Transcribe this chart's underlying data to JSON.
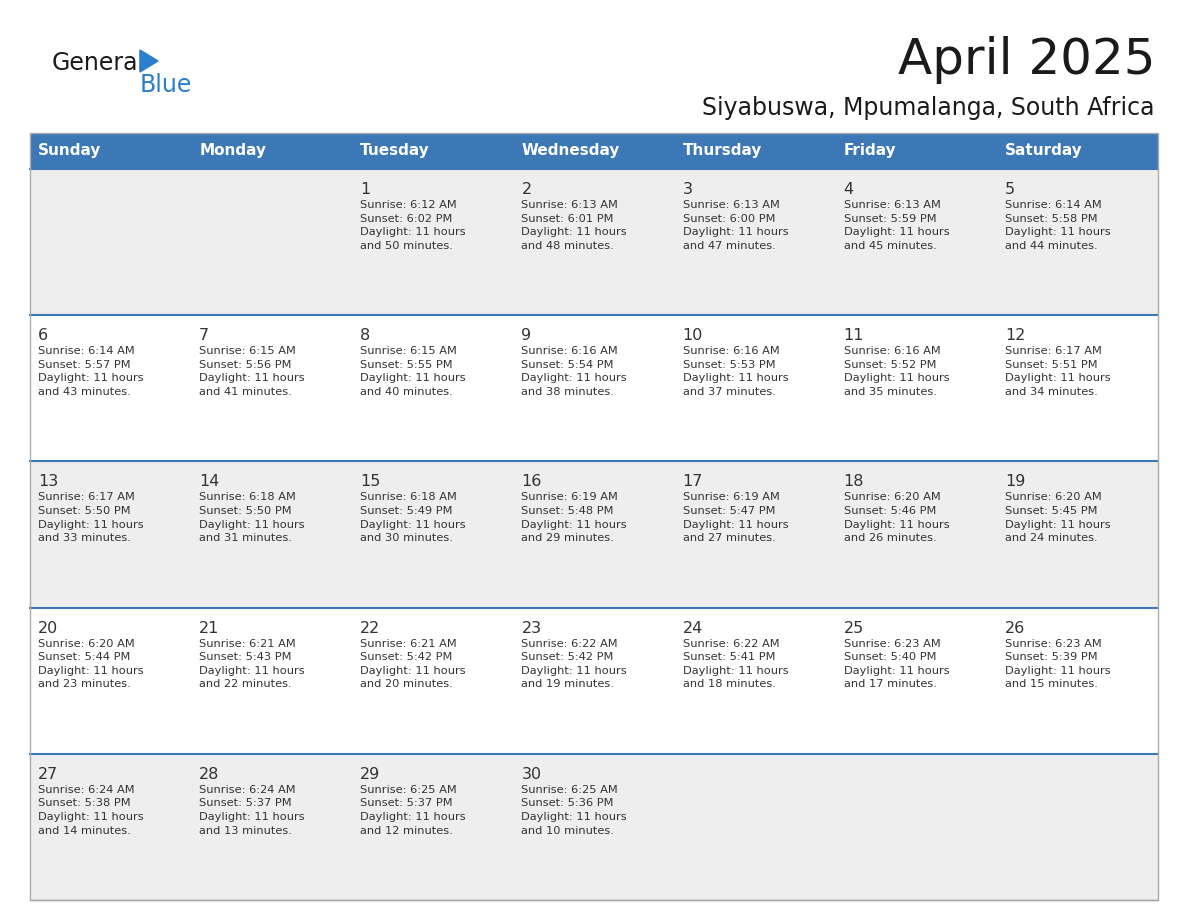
{
  "title": "April 2025",
  "subtitle": "Siyabuswa, Mpumalanga, South Africa",
  "days_of_week": [
    "Sunday",
    "Monday",
    "Tuesday",
    "Wednesday",
    "Thursday",
    "Friday",
    "Saturday"
  ],
  "header_bg": "#3C78B5",
  "header_text": "#FFFFFF",
  "row_bg_odd": "#EEEEEE",
  "row_bg_even": "#FFFFFF",
  "row_border_color": "#3C78B5",
  "outer_border_color": "#AAAAAA",
  "day_num_color": "#333333",
  "text_color": "#333333",
  "title_color": "#1a1a1a",
  "logo_general_color": "#1a1a1a",
  "logo_blue_color": "#2B7FCC",
  "logo_triangle_color": "#2B7FCC",
  "calendar": [
    [
      {
        "day": null,
        "info": ""
      },
      {
        "day": null,
        "info": ""
      },
      {
        "day": 1,
        "info": "Sunrise: 6:12 AM\nSunset: 6:02 PM\nDaylight: 11 hours\nand 50 minutes."
      },
      {
        "day": 2,
        "info": "Sunrise: 6:13 AM\nSunset: 6:01 PM\nDaylight: 11 hours\nand 48 minutes."
      },
      {
        "day": 3,
        "info": "Sunrise: 6:13 AM\nSunset: 6:00 PM\nDaylight: 11 hours\nand 47 minutes."
      },
      {
        "day": 4,
        "info": "Sunrise: 6:13 AM\nSunset: 5:59 PM\nDaylight: 11 hours\nand 45 minutes."
      },
      {
        "day": 5,
        "info": "Sunrise: 6:14 AM\nSunset: 5:58 PM\nDaylight: 11 hours\nand 44 minutes."
      }
    ],
    [
      {
        "day": 6,
        "info": "Sunrise: 6:14 AM\nSunset: 5:57 PM\nDaylight: 11 hours\nand 43 minutes."
      },
      {
        "day": 7,
        "info": "Sunrise: 6:15 AM\nSunset: 5:56 PM\nDaylight: 11 hours\nand 41 minutes."
      },
      {
        "day": 8,
        "info": "Sunrise: 6:15 AM\nSunset: 5:55 PM\nDaylight: 11 hours\nand 40 minutes."
      },
      {
        "day": 9,
        "info": "Sunrise: 6:16 AM\nSunset: 5:54 PM\nDaylight: 11 hours\nand 38 minutes."
      },
      {
        "day": 10,
        "info": "Sunrise: 6:16 AM\nSunset: 5:53 PM\nDaylight: 11 hours\nand 37 minutes."
      },
      {
        "day": 11,
        "info": "Sunrise: 6:16 AM\nSunset: 5:52 PM\nDaylight: 11 hours\nand 35 minutes."
      },
      {
        "day": 12,
        "info": "Sunrise: 6:17 AM\nSunset: 5:51 PM\nDaylight: 11 hours\nand 34 minutes."
      }
    ],
    [
      {
        "day": 13,
        "info": "Sunrise: 6:17 AM\nSunset: 5:50 PM\nDaylight: 11 hours\nand 33 minutes."
      },
      {
        "day": 14,
        "info": "Sunrise: 6:18 AM\nSunset: 5:50 PM\nDaylight: 11 hours\nand 31 minutes."
      },
      {
        "day": 15,
        "info": "Sunrise: 6:18 AM\nSunset: 5:49 PM\nDaylight: 11 hours\nand 30 minutes."
      },
      {
        "day": 16,
        "info": "Sunrise: 6:19 AM\nSunset: 5:48 PM\nDaylight: 11 hours\nand 29 minutes."
      },
      {
        "day": 17,
        "info": "Sunrise: 6:19 AM\nSunset: 5:47 PM\nDaylight: 11 hours\nand 27 minutes."
      },
      {
        "day": 18,
        "info": "Sunrise: 6:20 AM\nSunset: 5:46 PM\nDaylight: 11 hours\nand 26 minutes."
      },
      {
        "day": 19,
        "info": "Sunrise: 6:20 AM\nSunset: 5:45 PM\nDaylight: 11 hours\nand 24 minutes."
      }
    ],
    [
      {
        "day": 20,
        "info": "Sunrise: 6:20 AM\nSunset: 5:44 PM\nDaylight: 11 hours\nand 23 minutes."
      },
      {
        "day": 21,
        "info": "Sunrise: 6:21 AM\nSunset: 5:43 PM\nDaylight: 11 hours\nand 22 minutes."
      },
      {
        "day": 22,
        "info": "Sunrise: 6:21 AM\nSunset: 5:42 PM\nDaylight: 11 hours\nand 20 minutes."
      },
      {
        "day": 23,
        "info": "Sunrise: 6:22 AM\nSunset: 5:42 PM\nDaylight: 11 hours\nand 19 minutes."
      },
      {
        "day": 24,
        "info": "Sunrise: 6:22 AM\nSunset: 5:41 PM\nDaylight: 11 hours\nand 18 minutes."
      },
      {
        "day": 25,
        "info": "Sunrise: 6:23 AM\nSunset: 5:40 PM\nDaylight: 11 hours\nand 17 minutes."
      },
      {
        "day": 26,
        "info": "Sunrise: 6:23 AM\nSunset: 5:39 PM\nDaylight: 11 hours\nand 15 minutes."
      }
    ],
    [
      {
        "day": 27,
        "info": "Sunrise: 6:24 AM\nSunset: 5:38 PM\nDaylight: 11 hours\nand 14 minutes."
      },
      {
        "day": 28,
        "info": "Sunrise: 6:24 AM\nSunset: 5:37 PM\nDaylight: 11 hours\nand 13 minutes."
      },
      {
        "day": 29,
        "info": "Sunrise: 6:25 AM\nSunset: 5:37 PM\nDaylight: 11 hours\nand 12 minutes."
      },
      {
        "day": 30,
        "info": "Sunrise: 6:25 AM\nSunset: 5:36 PM\nDaylight: 11 hours\nand 10 minutes."
      },
      {
        "day": null,
        "info": ""
      },
      {
        "day": null,
        "info": ""
      },
      {
        "day": null,
        "info": ""
      }
    ]
  ]
}
